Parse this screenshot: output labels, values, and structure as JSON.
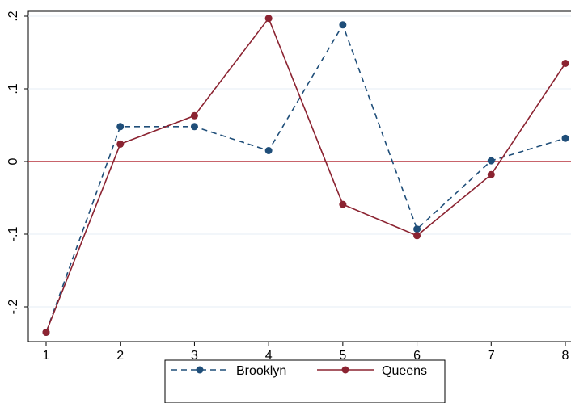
{
  "chart_data": {
    "type": "line",
    "title": "",
    "xlabel": "",
    "ylabel": "",
    "x": [
      1,
      2,
      3,
      4,
      5,
      6,
      7,
      8
    ],
    "xlim": [
      1,
      8
    ],
    "ylim": [
      -0.235,
      0.2
    ],
    "x_ticks": [
      "1",
      "2",
      "3",
      "4",
      "5",
      "6",
      "7",
      "8"
    ],
    "y_ticks": [
      {
        "value": 0.2,
        "label": ".2"
      },
      {
        "value": 0.1,
        "label": ".1"
      },
      {
        "value": 0,
        "label": "0"
      },
      {
        "value": -0.1,
        "label": "-.1"
      },
      {
        "value": -0.2,
        "label": "-.2"
      }
    ],
    "grid": true,
    "reference_line": {
      "y": 0,
      "color": "#b5303a"
    },
    "legend_position": "bottom",
    "series": [
      {
        "name": "Brooklyn",
        "color": "#1f4e79",
        "line_style": "dashed",
        "values": [
          -0.235,
          0.048,
          0.048,
          0.015,
          0.188,
          -0.093,
          0.001,
          0.032
        ]
      },
      {
        "name": "Queens",
        "color": "#8b2331",
        "line_style": "solid",
        "values": [
          -0.235,
          0.024,
          0.063,
          0.197,
          -0.059,
          -0.102,
          -0.018,
          0.135
        ]
      }
    ]
  }
}
